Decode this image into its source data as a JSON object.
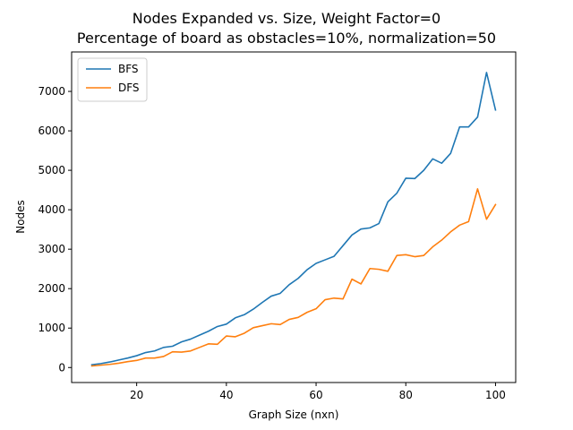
{
  "chart_data": {
    "type": "line",
    "title": "Nodes Expanded vs. Size, Weight Factor=0",
    "subtitle": "Percentage of board as obstacles=10%, normalization=50",
    "xlabel": "Graph Size (nxn)",
    "ylabel": "Nodes",
    "xlim": [
      5.5,
      104.5
    ],
    "ylim": [
      -380,
      8000
    ],
    "xticks": [
      20,
      40,
      60,
      80,
      100
    ],
    "yticks": [
      0,
      1000,
      2000,
      3000,
      4000,
      5000,
      6000,
      7000
    ],
    "grid": false,
    "legend": "top-left",
    "x": [
      10,
      12,
      14,
      16,
      18,
      20,
      22,
      24,
      26,
      28,
      30,
      32,
      34,
      36,
      38,
      40,
      42,
      44,
      46,
      48,
      50,
      52,
      54,
      56,
      58,
      60,
      62,
      64,
      66,
      68,
      70,
      72,
      74,
      76,
      78,
      80,
      82,
      84,
      86,
      88,
      90,
      92,
      94,
      96,
      98,
      100
    ],
    "series": [
      {
        "name": "BFS",
        "color": "#1f77b4",
        "values": [
          70,
          100,
          140,
          190,
          240,
          300,
          380,
          420,
          510,
          540,
          650,
          720,
          820,
          920,
          1040,
          1100,
          1260,
          1340,
          1480,
          1650,
          1810,
          1880,
          2100,
          2260,
          2480,
          2640,
          2730,
          2820,
          3090,
          3360,
          3510,
          3540,
          3650,
          4200,
          4420,
          4800,
          4790,
          5000,
          5290,
          5180,
          5430,
          6100,
          6100,
          6350,
          7480,
          6530
        ]
      },
      {
        "name": "DFS",
        "color": "#ff7f0e",
        "values": [
          40,
          60,
          80,
          110,
          150,
          180,
          240,
          240,
          280,
          400,
          390,
          420,
          510,
          600,
          590,
          800,
          780,
          870,
          1010,
          1060,
          1110,
          1090,
          1220,
          1270,
          1400,
          1490,
          1720,
          1760,
          1740,
          2240,
          2120,
          2510,
          2490,
          2440,
          2840,
          2860,
          2810,
          2840,
          3060,
          3230,
          3440,
          3610,
          3700,
          4530,
          3760,
          4130
        ]
      }
    ]
  }
}
